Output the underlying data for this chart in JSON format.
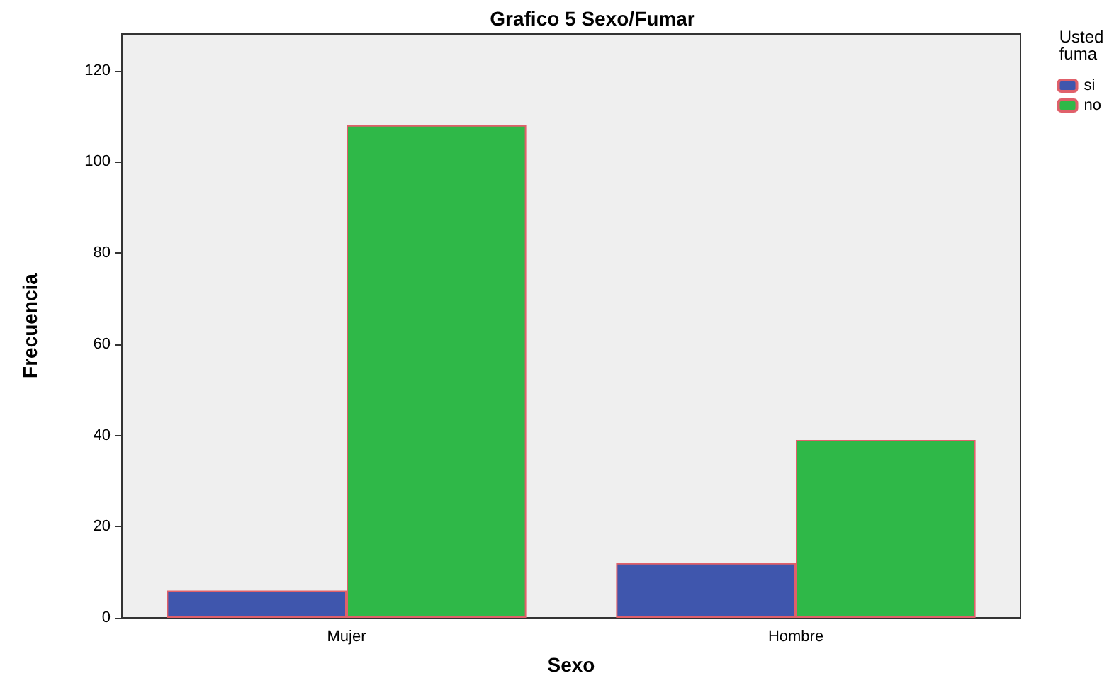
{
  "chart_data": {
    "type": "bar",
    "title": "Grafico 5 Sexo/Fumar",
    "xlabel": "Sexo",
    "ylabel": "Frecuencia",
    "legend_title": "Usted fuma",
    "categories": [
      "Mujer",
      "Hombre"
    ],
    "series": [
      {
        "name": "si",
        "color": "#3f56ad",
        "values": [
          6,
          12
        ]
      },
      {
        "name": "no",
        "color": "#2fb848",
        "values": [
          108,
          39
        ]
      }
    ],
    "ylim": [
      0,
      128
    ],
    "yticks": [
      0,
      20,
      40,
      60,
      80,
      100,
      120
    ],
    "grid": false,
    "legend": "top right"
  }
}
